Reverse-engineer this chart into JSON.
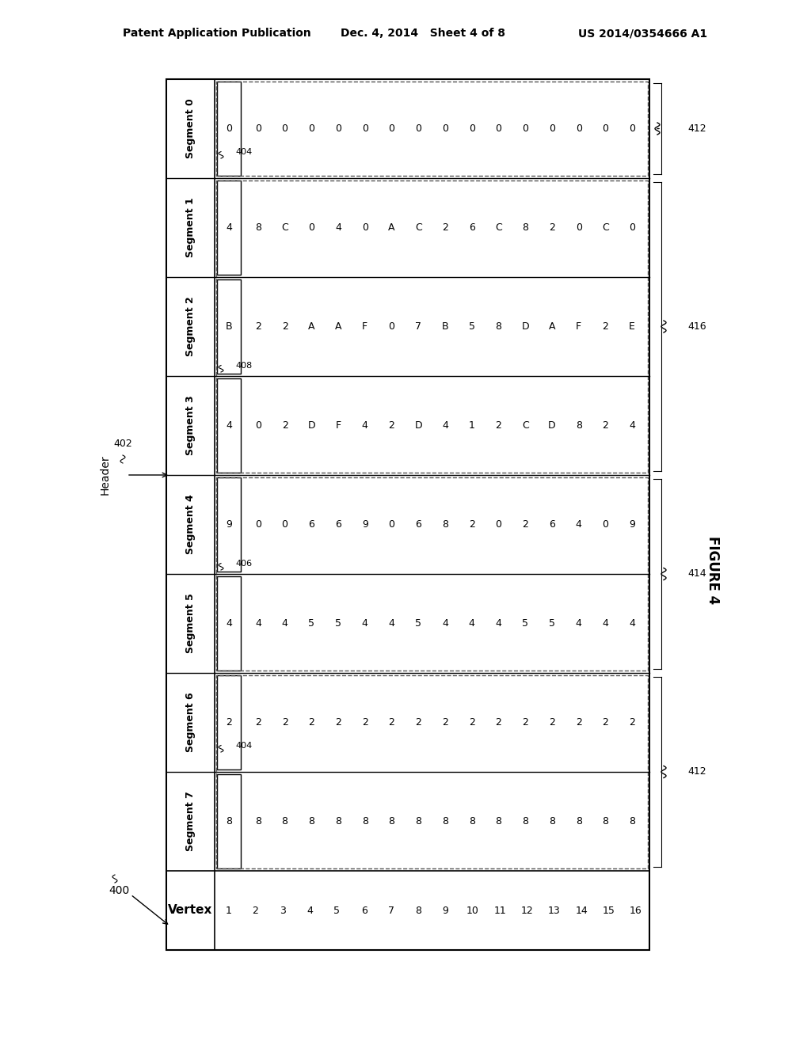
{
  "title_left": "Patent Application Publication",
  "title_center": "Dec. 4, 2014   Sheet 4 of 8",
  "title_right": "US 2014/0354666 A1",
  "figure_label": "FIGURE 4",
  "fig_num": "400",
  "header_label": "Header",
  "header_ref": "402",
  "segments": [
    "Segment 0",
    "Segment 1",
    "Segment 2",
    "Segment 3",
    "Segment 4",
    "Segment 5",
    "Segment 6",
    "Segment 7"
  ],
  "vertex_label": "Vertex",
  "vertex_values": [
    "1",
    "2",
    "3",
    "4",
    "5",
    "6",
    "7",
    "8",
    "9",
    "10",
    "11",
    "12",
    "13",
    "14",
    "15",
    "16"
  ],
  "seg0_header": "0",
  "seg0_data": [
    "0",
    "0",
    "0",
    "0",
    "0",
    "0",
    "0",
    "0",
    "0",
    "0",
    "0",
    "0",
    "0",
    "0",
    "0",
    "0"
  ],
  "seg1_header": "4",
  "seg1_data": [
    "8",
    "C",
    "0",
    "4",
    "0",
    "A",
    "C",
    "2",
    "6",
    "C",
    "8",
    "2",
    "0",
    "C",
    "0"
  ],
  "seg2_header": "B",
  "seg2_data": [
    "2",
    "2",
    "A",
    "A",
    "F",
    "0",
    "7",
    "B",
    "5",
    "8",
    "D",
    "A",
    "F",
    "2",
    "E"
  ],
  "seg3_header": "4",
  "seg3_data": [
    "0",
    "2",
    "D",
    "F",
    "4",
    "2",
    "D",
    "4",
    "1",
    "2",
    "C",
    "D",
    "8",
    "2",
    "4"
  ],
  "seg4_header": "9",
  "seg4_data": [
    "0",
    "0",
    "6",
    "6",
    "9",
    "0",
    "6",
    "8",
    "2",
    "0",
    "2",
    "6",
    "4",
    "0",
    "9"
  ],
  "seg5_header": "4",
  "seg5_data": [
    "4",
    "4",
    "5",
    "5",
    "4",
    "4",
    "5",
    "4",
    "4",
    "4",
    "5",
    "5",
    "4",
    "4",
    "4"
  ],
  "seg6_header": "2",
  "seg6_data": [
    "2",
    "2",
    "2",
    "2",
    "2",
    "2",
    "2",
    "2",
    "2",
    "2",
    "2",
    "2",
    "2",
    "2",
    "2"
  ],
  "seg7_header": "8",
  "seg7_data": [
    "8",
    "8",
    "8",
    "8",
    "8",
    "8",
    "8",
    "8",
    "8",
    "8",
    "8",
    "8",
    "8",
    "8",
    "8"
  ],
  "ref_404": "404",
  "ref_406": "406",
  "ref_408": "408",
  "ref_412": "412",
  "ref_414": "414",
  "ref_416": "416",
  "bg_color": "#ffffff",
  "line_color": "#000000",
  "dashed_color": "#555555",
  "font_color": "#000000"
}
